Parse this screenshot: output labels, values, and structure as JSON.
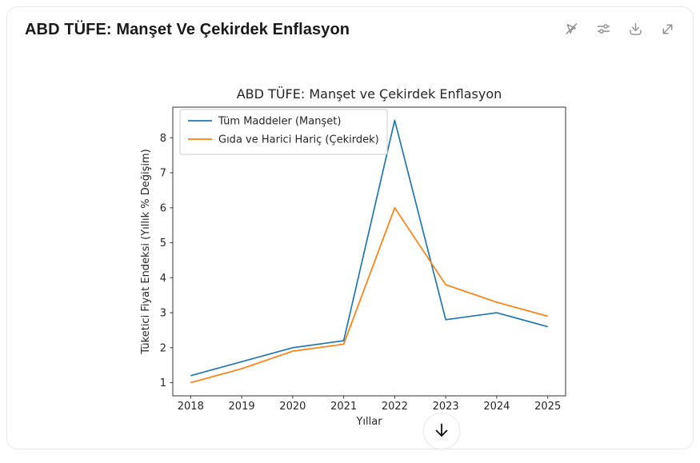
{
  "card": {
    "title": "ABD TÜFE: Manşet Ve Çekirdek Enflasyon",
    "toolbar": {
      "icons": [
        "pointer-off-icon",
        "sliders-icon",
        "download-icon",
        "expand-icon"
      ]
    }
  },
  "scroll_button": {
    "icon": "arrow-down-icon"
  },
  "chart_data": {
    "type": "line",
    "title": "ABD TÜFE: Manşet ve Çekirdek Enflasyon",
    "xlabel": "Yıllar",
    "ylabel": "Tüketici Fiyat Endeksi (Yıllık % Değişim)",
    "x": [
      2018,
      2019,
      2020,
      2021,
      2022,
      2023,
      2024,
      2025
    ],
    "series": [
      {
        "name": "Tüm Maddeler (Manşet)",
        "color": "#1f77b4",
        "values": [
          1.2,
          1.6,
          2.0,
          2.2,
          8.5,
          2.8,
          3.0,
          2.6
        ]
      },
      {
        "name": "Gıda ve Harici Hariç (Çekirdek)",
        "color": "#ff7f0e",
        "values": [
          1.0,
          1.4,
          1.9,
          2.1,
          6.0,
          3.8,
          3.3,
          2.9
        ]
      }
    ],
    "xticks": [
      2018,
      2019,
      2020,
      2021,
      2022,
      2023,
      2024,
      2025
    ],
    "yticks": [
      1,
      2,
      3,
      4,
      5,
      6,
      7,
      8
    ],
    "xlim": [
      2017.65,
      2025.35
    ],
    "ylim": [
      0.625,
      8.875
    ],
    "grid": false,
    "legend_position": "upper left",
    "line_width": 1.7,
    "spine_color": "#333333",
    "text_color": "#262626"
  }
}
